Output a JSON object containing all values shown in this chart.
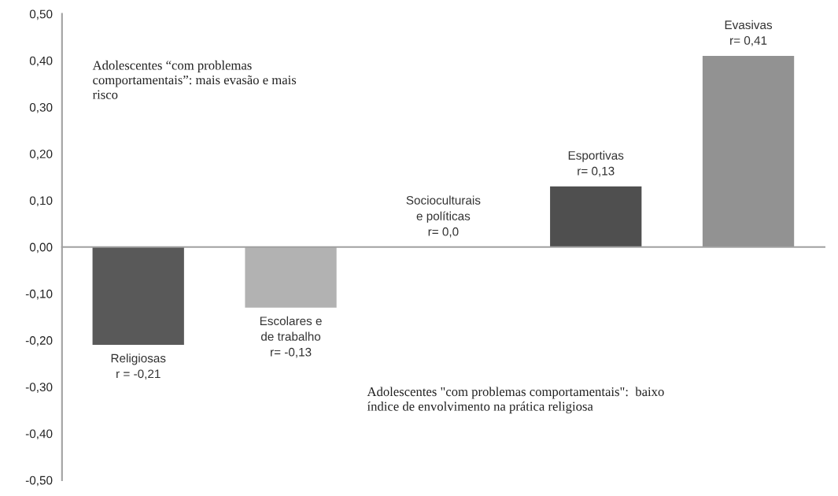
{
  "chart_data": {
    "type": "bar",
    "categories": [
      null,
      null,
      null,
      null,
      null
    ],
    "values": [
      -0.21,
      -0.13,
      0,
      0.13,
      0.41
    ],
    "colors": [
      "#595959",
      "#b2b2b2",
      "#7f7f7f",
      "#4f4f4f",
      "#929292"
    ],
    "value_labels": [
      "Religiosas\nr = -0,21",
      "Escolares e\nde trabalho\nr= -0,13",
      "Socioculturais\ne políticas\nr= 0,0",
      "Esportivas\nr= 0,13",
      "Evasivas\nr= 0,41"
    ],
    "ylim": [
      -0.5,
      0.5
    ],
    "yticks": [
      {
        "value": -0.5,
        "label": "-0,50"
      },
      {
        "value": -0.4,
        "label": "-0,40"
      },
      {
        "value": -0.3,
        "label": "-0,30"
      },
      {
        "value": -0.2,
        "label": "-0,20"
      },
      {
        "value": -0.1,
        "label": "-0,10"
      },
      {
        "value": 0,
        "label": "0,00"
      },
      {
        "value": 0.1,
        "label": "0,10"
      },
      {
        "value": 0.2,
        "label": "0,20"
      },
      {
        "value": 0.3,
        "label": "0,30"
      },
      {
        "value": 0.4,
        "label": "0,40"
      },
      {
        "value": 0.5,
        "label": "0,50"
      }
    ],
    "tick_labels": "y",
    "legend": false,
    "annotations": [
      "Adolescentes “com problemas comportamentais”: mais evasão e mais risco",
      "Adolescentes \"com problemas comportamentais\":  baixo índice de envolvimento na prática religiosa"
    ]
  }
}
